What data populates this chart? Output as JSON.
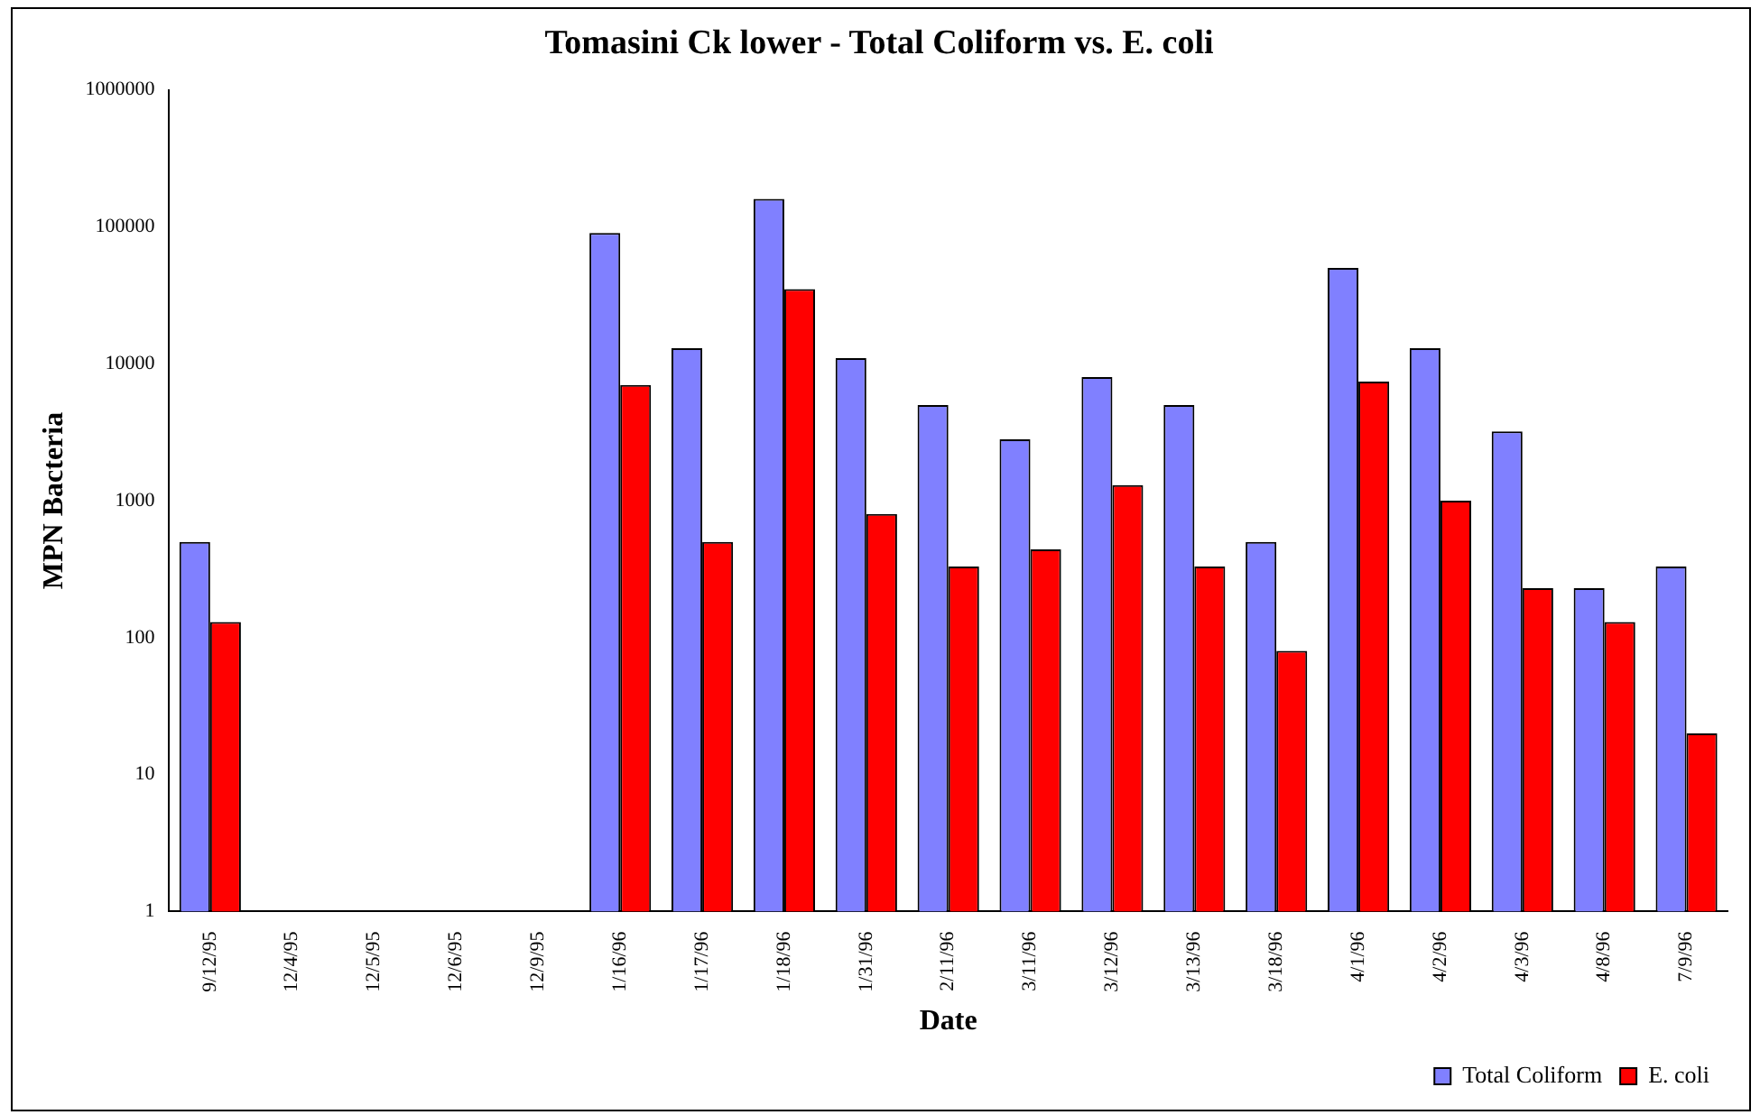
{
  "chart_data": {
    "type": "bar",
    "title": "Tomasini Ck lower - Total Coliform vs. E. coli",
    "xlabel": "Date",
    "ylabel": "MPN Bacteria",
    "categories": [
      "9/12/95",
      "12/4/95",
      "12/5/95",
      "12/6/95",
      "12/9/95",
      "1/16/96",
      "1/17/96",
      "1/18/96",
      "1/31/96",
      "2/11/96",
      "3/11/96",
      "3/12/96",
      "3/13/96",
      "3/18/96",
      "4/1/96",
      "4/2/96",
      "4/3/96",
      "4/8/96",
      "7/9/96"
    ],
    "series": [
      {
        "name": "Total Coliform",
        "color": "#8080ff",
        "values": [
          500,
          null,
          null,
          null,
          null,
          90000,
          13000,
          160000,
          11000,
          5000,
          2800,
          8000,
          5000,
          500,
          50000,
          13000,
          3200,
          230,
          330
        ]
      },
      {
        "name": "E. coli",
        "color": "#ff0000",
        "values": [
          130,
          null,
          null,
          null,
          null,
          7000,
          500,
          35000,
          800,
          330,
          440,
          1300,
          330,
          80,
          7400,
          1000,
          230,
          130,
          20
        ]
      }
    ],
    "log": "y",
    "ylim": [
      1,
      1000000
    ],
    "yticks": [
      1,
      10,
      100,
      1000,
      10000,
      100000,
      1000000
    ],
    "grid": false,
    "legend": "bottom right"
  }
}
